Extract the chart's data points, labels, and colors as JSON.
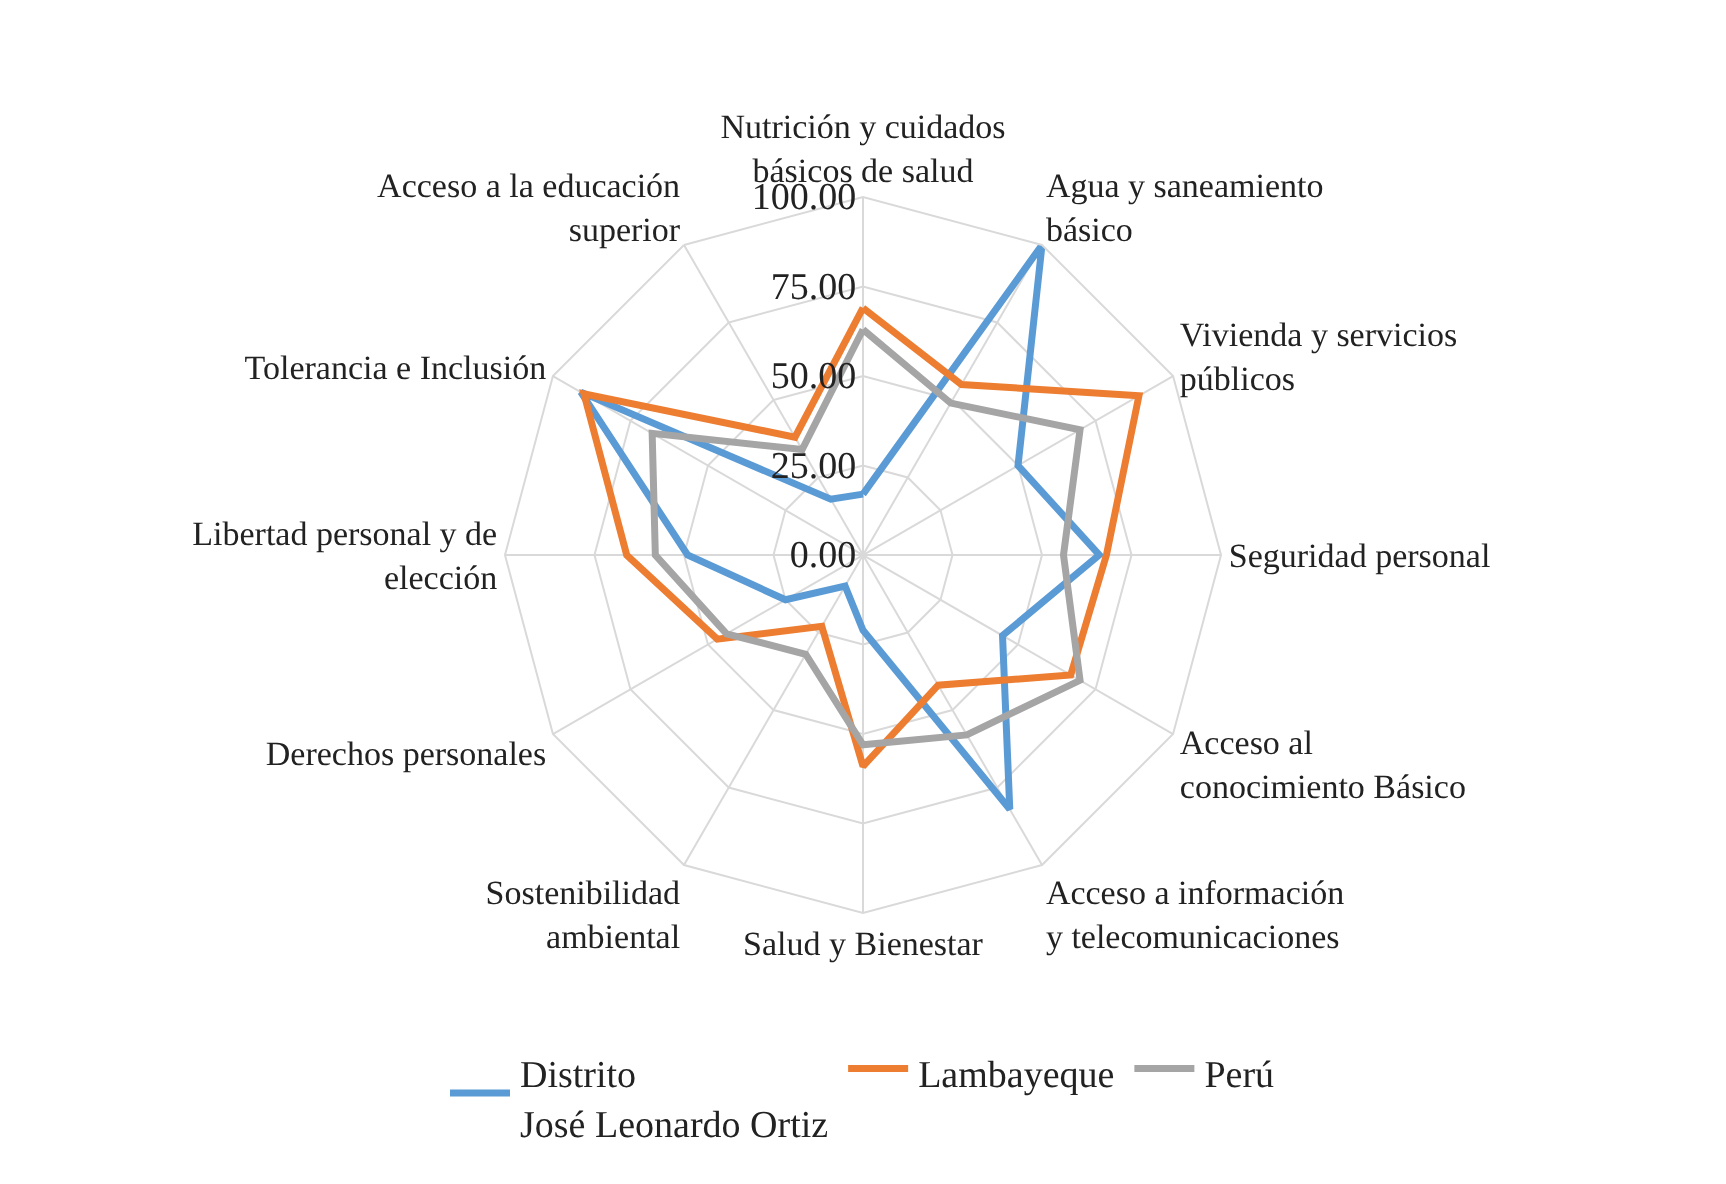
{
  "chart_data": {
    "type": "radar",
    "categories": [
      "Nutrición y cuidados\nbásicos de salud",
      "Agua y saneamiento\nbásico",
      "Vivienda y servicios\npúblicos",
      "Seguridad personal",
      "Acceso al\nconocimiento Básico",
      "Acceso a información\ny telecomunicaciones",
      "Salud y Bienestar",
      "Sostenibilidad\nambiental",
      "Derechos personales",
      "Libertad personal y de\nelección",
      "Tolerancia e Inclusión",
      "Acceso a la educación\nsuperior"
    ],
    "series": [
      {
        "name": "Distrito\nJosé Leonardo Ortiz",
        "color": "#5b9bd5",
        "values": [
          17,
          100,
          50,
          66,
          45,
          82,
          21,
          10,
          25,
          49,
          91,
          18
        ]
      },
      {
        "name": "Lambayeque",
        "color": "#ed7d31",
        "values": [
          69,
          55,
          89,
          68,
          67,
          42,
          59,
          23,
          47,
          66,
          90,
          38
        ]
      },
      {
        "name": "Perú",
        "color": "#a5a5a5",
        "values": [
          63,
          49,
          70,
          56,
          70,
          58,
          53,
          32,
          44,
          58,
          68,
          34
        ]
      }
    ],
    "ylim": [
      0,
      100
    ],
    "yticks": [
      {
        "value": 0,
        "label": "0.00"
      },
      {
        "value": 25,
        "label": "25.00"
      },
      {
        "value": 50,
        "label": "50.00"
      },
      {
        "value": 75,
        "label": "75.00"
      },
      {
        "value": 100,
        "label": "100.00"
      }
    ],
    "grid": true,
    "legend": "bottom",
    "marker": "none",
    "line_style": "solid"
  }
}
